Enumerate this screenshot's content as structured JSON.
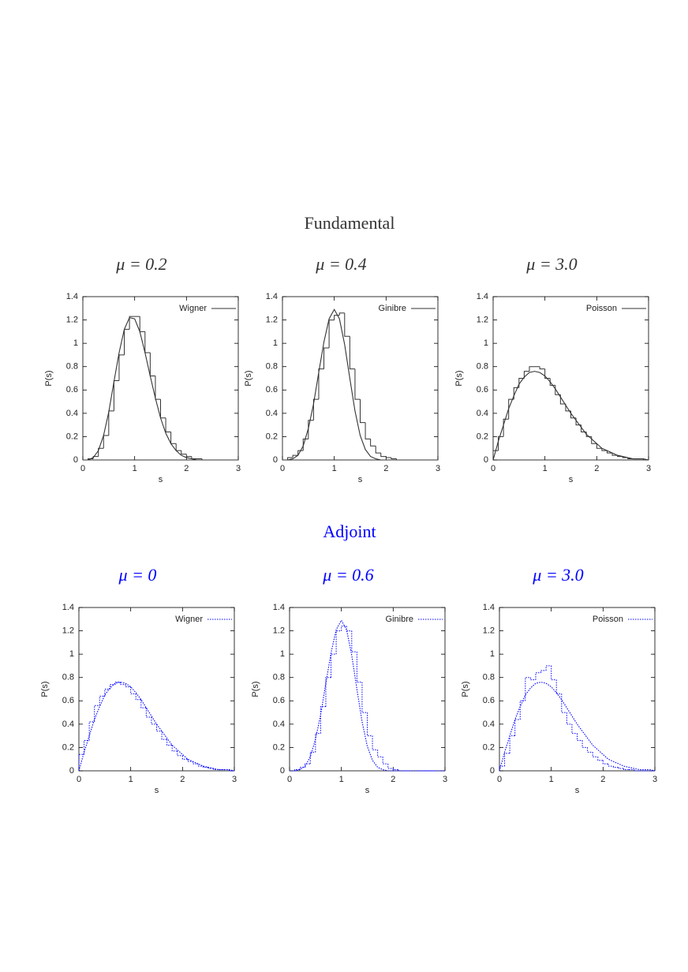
{
  "sections": [
    {
      "title": "Fundamental",
      "color": "#333333"
    },
    {
      "title": "Adjoint",
      "color": "#0000ff"
    }
  ],
  "chart_data": [
    {
      "type": "histogram",
      "title": "μ = 0.2",
      "xlabel": "s",
      "ylabel": "P(s)",
      "xlim": [
        0,
        3
      ],
      "ylim": [
        0,
        1.4
      ],
      "xticks": [
        0,
        1,
        2,
        3
      ],
      "yticks": [
        0,
        0.2,
        0.4,
        0.6,
        0.8,
        1,
        1.2,
        1.4
      ],
      "color": "#333333",
      "line_style": "solid",
      "legend": "upper right",
      "bins": [
        0,
        0.1,
        0.2,
        0.3,
        0.4,
        0.5,
        0.6,
        0.7,
        0.8,
        0.9,
        1,
        1.1,
        1.2,
        1.3,
        1.4,
        1.5,
        1.6,
        1.7,
        1.8,
        1.9,
        2,
        2.1,
        2.2,
        2.3,
        2.4,
        2.5,
        2.6,
        2.7,
        2.8,
        2.9,
        3
      ],
      "counts": [
        0,
        0.01,
        0.03,
        0.1,
        0.21,
        0.42,
        0.68,
        0.9,
        1.12,
        1.23,
        1.23,
        1.1,
        0.92,
        0.72,
        0.52,
        0.36,
        0.24,
        0.14,
        0.08,
        0.05,
        0.03,
        0.01,
        0.01,
        0,
        0,
        0,
        0,
        0,
        0,
        0
      ],
      "curve": {
        "name": "Wigner",
        "x": [
          0,
          0.1,
          0.2,
          0.3,
          0.4,
          0.5,
          0.6,
          0.7,
          0.8,
          0.9,
          1,
          1.1,
          1.2,
          1.3,
          1.4,
          1.5,
          1.6,
          1.7,
          1.8,
          1.9,
          2,
          2.1,
          2.2,
          2.3,
          2.4,
          2.5,
          2.6,
          2.7,
          2.8,
          2.9,
          3
        ],
        "values": [
          0,
          0,
          0.02,
          0.08,
          0.21,
          0.41,
          0.67,
          0.92,
          1.12,
          1.22,
          1.21,
          1.1,
          0.92,
          0.72,
          0.53,
          0.36,
          0.23,
          0.14,
          0.08,
          0.04,
          0.02,
          0.01,
          0,
          0,
          0,
          0,
          0,
          0,
          0,
          0,
          0
        ]
      }
    },
    {
      "type": "histogram",
      "title": "μ = 0.4",
      "xlabel": "s",
      "ylabel": "P(s)",
      "xlim": [
        0,
        3
      ],
      "ylim": [
        0,
        1.4
      ],
      "xticks": [
        0,
        1,
        2,
        3
      ],
      "yticks": [
        0,
        0.2,
        0.4,
        0.6,
        0.8,
        1,
        1.2,
        1.4
      ],
      "color": "#333333",
      "line_style": "solid",
      "legend": "upper right",
      "bins": [
        0,
        0.1,
        0.2,
        0.3,
        0.4,
        0.5,
        0.6,
        0.7,
        0.8,
        0.9,
        1,
        1.1,
        1.2,
        1.3,
        1.4,
        1.5,
        1.6,
        1.7,
        1.8,
        1.9,
        2,
        2.1,
        2.2,
        2.3,
        2.4,
        2.5,
        2.6,
        2.7,
        2.8,
        2.9,
        3
      ],
      "counts": [
        0,
        0.02,
        0.04,
        0.08,
        0.18,
        0.34,
        0.52,
        0.78,
        0.96,
        1.2,
        1.24,
        1.26,
        1.06,
        0.78,
        0.52,
        0.32,
        0.18,
        0.12,
        0.06,
        0.03,
        0.02,
        0.01,
        0,
        0,
        0,
        0,
        0,
        0,
        0,
        0
      ],
      "curve": {
        "name": "Ginibre",
        "x": [
          0,
          0.1,
          0.2,
          0.3,
          0.4,
          0.5,
          0.6,
          0.7,
          0.8,
          0.9,
          1,
          1.1,
          1.2,
          1.3,
          1.4,
          1.5,
          1.6,
          1.7,
          1.8,
          1.9,
          2,
          2.1,
          2.2,
          2.3,
          2.4,
          2.5,
          2.6,
          2.7,
          2.8,
          2.9,
          3
        ],
        "values": [
          0,
          0,
          0.01,
          0.04,
          0.12,
          0.27,
          0.48,
          0.75,
          1.01,
          1.21,
          1.29,
          1.21,
          0.99,
          0.7,
          0.42,
          0.21,
          0.09,
          0.03,
          0.01,
          0,
          0,
          0,
          0,
          0,
          0,
          0,
          0,
          0,
          0,
          0,
          0
        ]
      }
    },
    {
      "type": "histogram",
      "title": "μ = 3.0",
      "xlabel": "s",
      "ylabel": "P(s)",
      "xlim": [
        0,
        3
      ],
      "ylim": [
        0,
        1.4
      ],
      "xticks": [
        0,
        1,
        2,
        3
      ],
      "yticks": [
        0,
        0.2,
        0.4,
        0.6,
        0.8,
        1,
        1.2,
        1.4
      ],
      "color": "#333333",
      "line_style": "solid",
      "legend": "upper right",
      "bins": [
        0,
        0.1,
        0.2,
        0.3,
        0.4,
        0.5,
        0.6,
        0.7,
        0.8,
        0.9,
        1,
        1.1,
        1.2,
        1.3,
        1.4,
        1.5,
        1.6,
        1.7,
        1.8,
        1.9,
        2,
        2.1,
        2.2,
        2.3,
        2.4,
        2.5,
        2.6,
        2.7,
        2.8,
        2.9,
        3
      ],
      "counts": [
        0.08,
        0.2,
        0.35,
        0.52,
        0.62,
        0.7,
        0.76,
        0.8,
        0.8,
        0.78,
        0.7,
        0.64,
        0.56,
        0.48,
        0.42,
        0.36,
        0.3,
        0.24,
        0.2,
        0.14,
        0.1,
        0.08,
        0.06,
        0.04,
        0.03,
        0.02,
        0.01,
        0.01,
        0.01,
        0
      ],
      "curve": {
        "name": "Poisson",
        "x": [
          0,
          0.1,
          0.2,
          0.3,
          0.4,
          0.5,
          0.6,
          0.7,
          0.8,
          0.9,
          1,
          1.1,
          1.2,
          1.3,
          1.4,
          1.5,
          1.6,
          1.7,
          1.8,
          1.9,
          2,
          2.1,
          2.2,
          2.3,
          2.4,
          2.5,
          2.6,
          2.7,
          2.8,
          2.9,
          3
        ],
        "values": [
          0,
          0.16,
          0.3,
          0.44,
          0.55,
          0.65,
          0.71,
          0.75,
          0.76,
          0.75,
          0.72,
          0.67,
          0.61,
          0.54,
          0.47,
          0.4,
          0.34,
          0.28,
          0.22,
          0.18,
          0.14,
          0.1,
          0.08,
          0.06,
          0.04,
          0.03,
          0.02,
          0.01,
          0.01,
          0.01,
          0
        ]
      }
    },
    {
      "type": "histogram",
      "title": "μ = 0",
      "xlabel": "s",
      "ylabel": "P(s)",
      "xlim": [
        0,
        3
      ],
      "ylim": [
        0,
        1.4
      ],
      "xticks": [
        0,
        1,
        2,
        3
      ],
      "yticks": [
        0,
        0.2,
        0.4,
        0.6,
        0.8,
        1,
        1.2,
        1.4
      ],
      "color": "#0000ff",
      "line_style": "dotted",
      "legend": "upper right",
      "bins": [
        0,
        0.1,
        0.2,
        0.3,
        0.4,
        0.5,
        0.6,
        0.7,
        0.8,
        0.9,
        1,
        1.1,
        1.2,
        1.3,
        1.4,
        1.5,
        1.6,
        1.7,
        1.8,
        1.9,
        2,
        2.1,
        2.2,
        2.3,
        2.4,
        2.5,
        2.6,
        2.7,
        2.8,
        2.9,
        3
      ],
      "counts": [
        0.14,
        0.26,
        0.42,
        0.56,
        0.64,
        0.7,
        0.74,
        0.76,
        0.74,
        0.72,
        0.66,
        0.61,
        0.54,
        0.46,
        0.4,
        0.34,
        0.27,
        0.22,
        0.17,
        0.13,
        0.1,
        0.08,
        0.06,
        0.04,
        0.03,
        0.02,
        0.01,
        0.01,
        0.01,
        0
      ],
      "curve": {
        "name": "Wigner",
        "x": [
          0,
          0.1,
          0.2,
          0.3,
          0.4,
          0.5,
          0.6,
          0.7,
          0.8,
          0.9,
          1,
          1.1,
          1.2,
          1.3,
          1.4,
          1.5,
          1.6,
          1.7,
          1.8,
          1.9,
          2,
          2.1,
          2.2,
          2.3,
          2.4,
          2.5,
          2.6,
          2.7,
          2.8,
          2.9,
          3
        ],
        "values": [
          0,
          0.16,
          0.3,
          0.44,
          0.55,
          0.65,
          0.71,
          0.75,
          0.76,
          0.75,
          0.72,
          0.67,
          0.61,
          0.54,
          0.47,
          0.4,
          0.34,
          0.28,
          0.22,
          0.18,
          0.14,
          0.1,
          0.08,
          0.06,
          0.04,
          0.03,
          0.02,
          0.01,
          0.01,
          0.01,
          0
        ]
      }
    },
    {
      "type": "histogram",
      "title": "μ = 0.6",
      "xlabel": "s",
      "ylabel": "P(s)",
      "xlim": [
        0,
        3
      ],
      "ylim": [
        0,
        1.4
      ],
      "xticks": [
        0,
        1,
        2,
        3
      ],
      "yticks": [
        0,
        0.2,
        0.4,
        0.6,
        0.8,
        1,
        1.2,
        1.4
      ],
      "color": "#0000ff",
      "line_style": "dotted",
      "legend": "upper right",
      "bins": [
        0,
        0.1,
        0.2,
        0.3,
        0.4,
        0.5,
        0.6,
        0.7,
        0.8,
        0.9,
        1,
        1.1,
        1.2,
        1.3,
        1.4,
        1.5,
        1.6,
        1.7,
        1.8,
        1.9,
        2,
        2.1,
        2.2,
        2.3,
        2.4,
        2.5,
        2.6,
        2.7,
        2.8,
        2.9,
        3
      ],
      "counts": [
        0,
        0.01,
        0.03,
        0.06,
        0.16,
        0.32,
        0.55,
        0.8,
        1,
        1.2,
        1.24,
        1.2,
        1.02,
        0.76,
        0.5,
        0.3,
        0.18,
        0.12,
        0.06,
        0.02,
        0.01,
        0,
        0,
        0,
        0,
        0,
        0,
        0,
        0,
        0
      ],
      "curve": {
        "name": "Ginibre",
        "x": [
          0,
          0.1,
          0.2,
          0.3,
          0.4,
          0.5,
          0.6,
          0.7,
          0.8,
          0.9,
          1,
          1.1,
          1.2,
          1.3,
          1.4,
          1.5,
          1.6,
          1.7,
          1.8,
          1.9,
          2,
          2.1,
          2.2,
          2.3,
          2.4,
          2.5,
          2.6,
          2.7,
          2.8,
          2.9,
          3
        ],
        "values": [
          0,
          0,
          0.01,
          0.04,
          0.12,
          0.27,
          0.48,
          0.75,
          1.01,
          1.21,
          1.29,
          1.21,
          0.99,
          0.7,
          0.42,
          0.21,
          0.09,
          0.03,
          0.01,
          0,
          0,
          0,
          0,
          0,
          0,
          0,
          0,
          0,
          0,
          0,
          0
        ]
      }
    },
    {
      "type": "histogram",
      "title": "μ = 3.0",
      "xlabel": "s",
      "ylabel": "P(s)",
      "xlim": [
        0,
        3
      ],
      "ylim": [
        0,
        1.4
      ],
      "xticks": [
        0,
        1,
        2,
        3
      ],
      "yticks": [
        0,
        0.2,
        0.4,
        0.6,
        0.8,
        1,
        1.2,
        1.4
      ],
      "color": "#0000ff",
      "line_style": "dotted",
      "legend": "upper right",
      "bins": [
        0,
        0.1,
        0.2,
        0.3,
        0.4,
        0.5,
        0.6,
        0.7,
        0.8,
        0.9,
        1,
        1.1,
        1.2,
        1.3,
        1.4,
        1.5,
        1.6,
        1.7,
        1.8,
        1.9,
        2,
        2.1,
        2.2,
        2.3,
        2.4,
        2.5,
        2.6,
        2.7,
        2.8,
        2.9,
        3
      ],
      "counts": [
        0.04,
        0.15,
        0.3,
        0.44,
        0.6,
        0.8,
        0.78,
        0.84,
        0.86,
        0.9,
        0.78,
        0.66,
        0.5,
        0.4,
        0.32,
        0.26,
        0.2,
        0.16,
        0.12,
        0.09,
        0.06,
        0.04,
        0.03,
        0.02,
        0.01,
        0.01,
        0,
        0,
        0,
        0
      ],
      "curve": {
        "name": "Poisson",
        "x": [
          0,
          0.1,
          0.2,
          0.3,
          0.4,
          0.5,
          0.6,
          0.7,
          0.8,
          0.9,
          1,
          1.1,
          1.2,
          1.3,
          1.4,
          1.5,
          1.6,
          1.7,
          1.8,
          1.9,
          2,
          2.1,
          2.2,
          2.3,
          2.4,
          2.5,
          2.6,
          2.7,
          2.8,
          2.9,
          3
        ],
        "values": [
          0,
          0.16,
          0.3,
          0.44,
          0.55,
          0.65,
          0.71,
          0.75,
          0.76,
          0.75,
          0.72,
          0.67,
          0.61,
          0.54,
          0.47,
          0.4,
          0.34,
          0.28,
          0.22,
          0.18,
          0.14,
          0.1,
          0.08,
          0.06,
          0.04,
          0.03,
          0.02,
          0.01,
          0.01,
          0.01,
          0
        ]
      }
    }
  ]
}
